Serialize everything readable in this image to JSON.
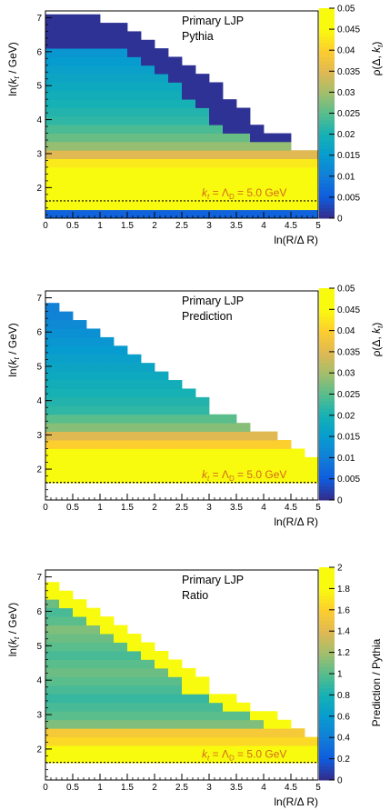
{
  "chart_data": [
    {
      "type": "heatmap",
      "title": "",
      "legend_lines": [
        "Primary LJP",
        "Pythia"
      ],
      "xlabel": "ln(R/Δ R)",
      "ylabel": "ln(k_t / GeV)",
      "zlabel": "ρ(Δ, k_t)",
      "annotation": "k_t = Λ_D = 5.0 GeV",
      "annotation_y": 1.61,
      "xlim": [
        0,
        5
      ],
      "ylim": [
        1.1,
        7.2
      ],
      "zlim": [
        0,
        0.05
      ],
      "x_ticks": [
        "0",
        "0.5",
        "1",
        "1.5",
        "2",
        "2.5",
        "3",
        "3.5",
        "4",
        "4.5",
        "5"
      ],
      "y_ticks": [
        "2",
        "3",
        "4",
        "5",
        "6",
        "7"
      ],
      "z_ticks": [
        "0",
        "0.005",
        "0.01",
        "0.015",
        "0.02",
        "0.025",
        "0.03",
        "0.035",
        "0.04",
        "0.045",
        "0.05"
      ],
      "x_bin_width": 0.25,
      "y_bin_width": 0.25,
      "y_bin_start": 1.1,
      "row_profiles": [
        0.006,
        0.05,
        0.05,
        0.05,
        0.05,
        0.05,
        0.043,
        0.035,
        0.029,
        0.026,
        0.024,
        0.022,
        0.021,
        0.02,
        0.019,
        0.018,
        0.017,
        0.016,
        0.015,
        0.014,
        0.013,
        0.012,
        0.011,
        0.0105
      ],
      "max_x_per_row": [
        5,
        5,
        5,
        5,
        5,
        5,
        5,
        5,
        4.5,
        4.5,
        4.0,
        3.75,
        3.75,
        3.5,
        3.25,
        3.25,
        3.0,
        2.75,
        2.5,
        2.25,
        2.0,
        1.75,
        1.5,
        1.0
      ],
      "edge_value": 0.0008
    },
    {
      "type": "heatmap",
      "title": "",
      "legend_lines": [
        "Primary LJP",
        "Prediction"
      ],
      "xlabel": "ln(R/Δ R)",
      "ylabel": "ln(k_t / GeV)",
      "zlabel": "ρ(Δ, k_t)",
      "annotation": "k_t = Λ_D = 5.0 GeV",
      "annotation_y": 1.61,
      "xlim": [
        0,
        5
      ],
      "ylim": [
        1.1,
        7.2
      ],
      "zlim": [
        0,
        0.05
      ],
      "x_ticks": [
        "0",
        "0.5",
        "1",
        "1.5",
        "2",
        "2.5",
        "3",
        "3.5",
        "4",
        "4.5",
        "5"
      ],
      "y_ticks": [
        "2",
        "3",
        "4",
        "5",
        "6",
        "7"
      ],
      "z_ticks": [
        "0",
        "0.005",
        "0.01",
        "0.015",
        "0.02",
        "0.025",
        "0.03",
        "0.035",
        "0.04",
        "0.045",
        "0.05"
      ],
      "x_bin_width": 0.25,
      "y_bin_width": 0.25,
      "y_bin_start": 1.1,
      "row_profiles": [
        0.0,
        0.0,
        0.05,
        0.05,
        0.05,
        0.05,
        0.04,
        0.035,
        0.028,
        0.025,
        0.022,
        0.021,
        0.02,
        0.019,
        0.018,
        0.017,
        0.016,
        0.015,
        0.014,
        0.013,
        0.012,
        0.011,
        0.0105
      ],
      "max_x_per_row": [
        5,
        5,
        5,
        5,
        5,
        4.75,
        4.5,
        4.25,
        3.75,
        3.5,
        3.0,
        3.0,
        2.75,
        2.5,
        2.25,
        2.0,
        1.75,
        1.5,
        1.25,
        1.0,
        0.75,
        0.5,
        0.25
      ],
      "edge_value": 0
    },
    {
      "type": "heatmap",
      "title": "",
      "legend_lines": [
        "Primary LJP",
        "Ratio"
      ],
      "xlabel": "ln(R/Δ R)",
      "ylabel": "ln(k_t / GeV)",
      "zlabel": "Prediction / Pythia",
      "annotation": "k_t = Λ_D = 5.0 GeV",
      "annotation_y": 1.61,
      "xlim": [
        0,
        5
      ],
      "ylim": [
        1.1,
        7.2
      ],
      "zlim": [
        0,
        2
      ],
      "x_ticks": [
        "0",
        "0.5",
        "1",
        "1.5",
        "2",
        "2.5",
        "3",
        "3.5",
        "4",
        "4.5",
        "5"
      ],
      "y_ticks": [
        "2",
        "3",
        "4",
        "5",
        "6",
        "7"
      ],
      "z_ticks": [
        "0",
        "0.2",
        "0.4",
        "0.6",
        "0.8",
        "1",
        "1.2",
        "1.4",
        "1.6",
        "1.8",
        "2"
      ],
      "x_bin_width": 0.25,
      "y_bin_width": 0.25,
      "y_bin_start": 1.1,
      "row_profiles": [
        0.0,
        0.0,
        2.0,
        1.8,
        1.65,
        1.55,
        1.1,
        1.0,
        0.95,
        0.9,
        0.95,
        1.0,
        1.05,
        1.0,
        0.95,
        1.0,
        1.05,
        1.1,
        1.0,
        0.95,
        1.05,
        1.0,
        1.05
      ],
      "max_x_per_row": [
        5,
        5,
        5,
        5,
        5,
        4.75,
        4.5,
        4.25,
        3.75,
        3.5,
        3.0,
        3.0,
        2.75,
        2.5,
        2.25,
        2.0,
        1.75,
        1.5,
        1.25,
        1.0,
        0.75,
        0.5,
        0.25
      ],
      "edge_value": 2.0
    }
  ]
}
